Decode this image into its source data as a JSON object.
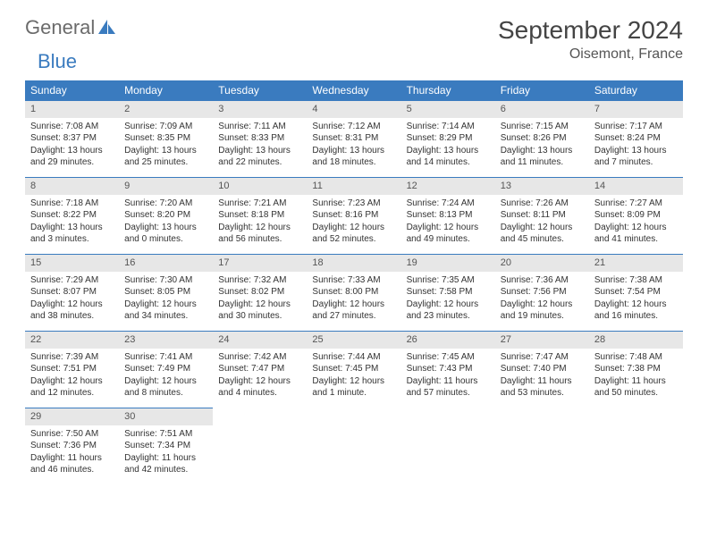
{
  "brand": {
    "part1": "General",
    "part2": "Blue"
  },
  "title": "September 2024",
  "location": "Oisemont, France",
  "colors": {
    "header_bg": "#3a7bbf",
    "daynum_bg": "#e7e7e7",
    "text": "#333333"
  },
  "weekdays": [
    "Sunday",
    "Monday",
    "Tuesday",
    "Wednesday",
    "Thursday",
    "Friday",
    "Saturday"
  ],
  "days": [
    {
      "n": "1",
      "sunrise": "7:08 AM",
      "sunset": "8:37 PM",
      "day_h": "13",
      "day_m": "29"
    },
    {
      "n": "2",
      "sunrise": "7:09 AM",
      "sunset": "8:35 PM",
      "day_h": "13",
      "day_m": "25"
    },
    {
      "n": "3",
      "sunrise": "7:11 AM",
      "sunset": "8:33 PM",
      "day_h": "13",
      "day_m": "22"
    },
    {
      "n": "4",
      "sunrise": "7:12 AM",
      "sunset": "8:31 PM",
      "day_h": "13",
      "day_m": "18"
    },
    {
      "n": "5",
      "sunrise": "7:14 AM",
      "sunset": "8:29 PM",
      "day_h": "13",
      "day_m": "14"
    },
    {
      "n": "6",
      "sunrise": "7:15 AM",
      "sunset": "8:26 PM",
      "day_h": "13",
      "day_m": "11"
    },
    {
      "n": "7",
      "sunrise": "7:17 AM",
      "sunset": "8:24 PM",
      "day_h": "13",
      "day_m": "7"
    },
    {
      "n": "8",
      "sunrise": "7:18 AM",
      "sunset": "8:22 PM",
      "day_h": "13",
      "day_m": "3"
    },
    {
      "n": "9",
      "sunrise": "7:20 AM",
      "sunset": "8:20 PM",
      "day_h": "13",
      "day_m": "0"
    },
    {
      "n": "10",
      "sunrise": "7:21 AM",
      "sunset": "8:18 PM",
      "day_h": "12",
      "day_m": "56"
    },
    {
      "n": "11",
      "sunrise": "7:23 AM",
      "sunset": "8:16 PM",
      "day_h": "12",
      "day_m": "52"
    },
    {
      "n": "12",
      "sunrise": "7:24 AM",
      "sunset": "8:13 PM",
      "day_h": "12",
      "day_m": "49"
    },
    {
      "n": "13",
      "sunrise": "7:26 AM",
      "sunset": "8:11 PM",
      "day_h": "12",
      "day_m": "45"
    },
    {
      "n": "14",
      "sunrise": "7:27 AM",
      "sunset": "8:09 PM",
      "day_h": "12",
      "day_m": "41"
    },
    {
      "n": "15",
      "sunrise": "7:29 AM",
      "sunset": "8:07 PM",
      "day_h": "12",
      "day_m": "38"
    },
    {
      "n": "16",
      "sunrise": "7:30 AM",
      "sunset": "8:05 PM",
      "day_h": "12",
      "day_m": "34"
    },
    {
      "n": "17",
      "sunrise": "7:32 AM",
      "sunset": "8:02 PM",
      "day_h": "12",
      "day_m": "30"
    },
    {
      "n": "18",
      "sunrise": "7:33 AM",
      "sunset": "8:00 PM",
      "day_h": "12",
      "day_m": "27"
    },
    {
      "n": "19",
      "sunrise": "7:35 AM",
      "sunset": "7:58 PM",
      "day_h": "12",
      "day_m": "23"
    },
    {
      "n": "20",
      "sunrise": "7:36 AM",
      "sunset": "7:56 PM",
      "day_h": "12",
      "day_m": "19"
    },
    {
      "n": "21",
      "sunrise": "7:38 AM",
      "sunset": "7:54 PM",
      "day_h": "12",
      "day_m": "16"
    },
    {
      "n": "22",
      "sunrise": "7:39 AM",
      "sunset": "7:51 PM",
      "day_h": "12",
      "day_m": "12"
    },
    {
      "n": "23",
      "sunrise": "7:41 AM",
      "sunset": "7:49 PM",
      "day_h": "12",
      "day_m": "8"
    },
    {
      "n": "24",
      "sunrise": "7:42 AM",
      "sunset": "7:47 PM",
      "day_h": "12",
      "day_m": "4"
    },
    {
      "n": "25",
      "sunrise": "7:44 AM",
      "sunset": "7:45 PM",
      "day_h": "12",
      "day_m": "1"
    },
    {
      "n": "26",
      "sunrise": "7:45 AM",
      "sunset": "7:43 PM",
      "day_h": "11",
      "day_m": "57"
    },
    {
      "n": "27",
      "sunrise": "7:47 AM",
      "sunset": "7:40 PM",
      "day_h": "11",
      "day_m": "53"
    },
    {
      "n": "28",
      "sunrise": "7:48 AM",
      "sunset": "7:38 PM",
      "day_h": "11",
      "day_m": "50"
    },
    {
      "n": "29",
      "sunrise": "7:50 AM",
      "sunset": "7:36 PM",
      "day_h": "11",
      "day_m": "46"
    },
    {
      "n": "30",
      "sunrise": "7:51 AM",
      "sunset": "7:34 PM",
      "day_h": "11",
      "day_m": "42"
    }
  ],
  "labels": {
    "sunrise": "Sunrise: ",
    "sunset": "Sunset: ",
    "daylight": "Daylight: ",
    "hours": " hours",
    "and": "and ",
    "minutes_1": " minute.",
    "minutes": " minutes."
  },
  "layout": {
    "start_offset": 0,
    "total_cells": 35
  }
}
